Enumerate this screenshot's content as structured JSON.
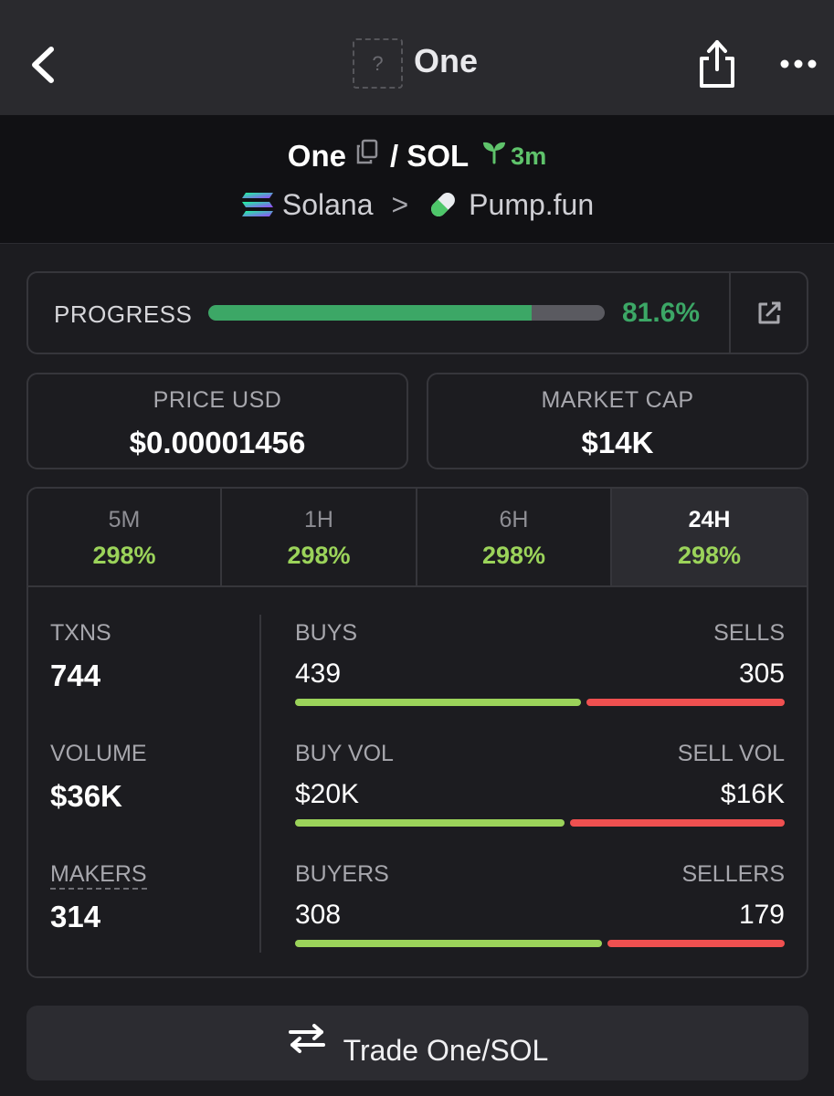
{
  "topbar": {
    "title": "One",
    "token_placeholder": "?",
    "icons": [
      "chevron-left-icon",
      "share-icon",
      "more-icon"
    ]
  },
  "pair": {
    "base": "One",
    "separator": "/",
    "quote": "SOL",
    "age": "3m",
    "chain": "Solana",
    "chain_sep": ">",
    "dex": "Pump.fun"
  },
  "progress": {
    "label": "PROGRESS",
    "value_text": "81.6%",
    "fraction": 0.816
  },
  "stats": {
    "price_label": "PRICE USD",
    "price_value": "$0.00001456",
    "mcap_label": "MARKET CAP",
    "mcap_value": "$14K"
  },
  "timeframes": [
    {
      "label": "5M",
      "change": "298%"
    },
    {
      "label": "1H",
      "change": "298%"
    },
    {
      "label": "6H",
      "change": "298%"
    },
    {
      "label": "24H",
      "change": "298%",
      "active": true
    }
  ],
  "metrics": {
    "txns_label": "TXNS",
    "txns_value": "744",
    "volume_label": "VOLUME",
    "volume_value": "$36K",
    "makers_label": "MAKERS",
    "makers_value": "314"
  },
  "splits": [
    {
      "left_label": "BUYS",
      "left_value": "439",
      "right_label": "SELLS",
      "right_value": "305",
      "buy_fraction": 0.59
    },
    {
      "left_label": "BUY VOL",
      "left_value": "$20K",
      "right_label": "SELL VOL",
      "right_value": "$16K",
      "buy_fraction": 0.556
    },
    {
      "left_label": "BUYERS",
      "left_value": "308",
      "right_label": "SELLERS",
      "right_value": "179",
      "buy_fraction": 0.632
    }
  ],
  "trade": {
    "label": "Trade One/SOL"
  },
  "colors": {
    "green": "#3ca766",
    "buy": "#9bd35a",
    "sell": "#ef5050",
    "background": "#1c1c20"
  }
}
